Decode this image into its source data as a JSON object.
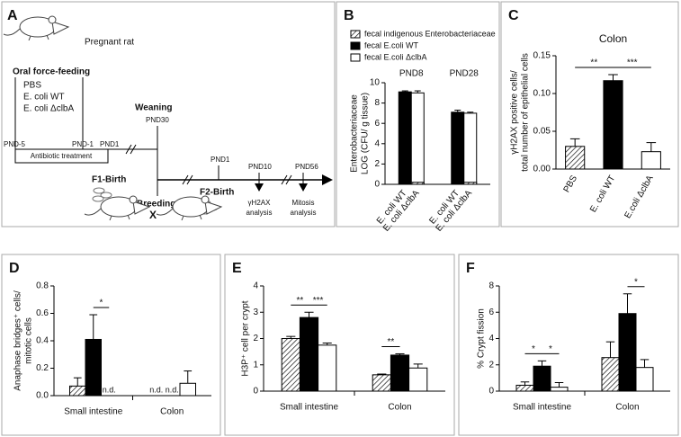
{
  "diagram": {
    "label": "A",
    "pregnant_rat": "Pregnant  rat",
    "oral_force_feeding": "Oral force-feeding",
    "groups": [
      "PBS",
      "E. coli WT",
      "E. coli ΔclbA"
    ],
    "timeline_1": [
      "PND-5",
      "PND-1",
      "PND1",
      "PND30"
    ],
    "antibiotic": "Antibiotic treatment",
    "weaning": "Weaning",
    "f1_birth": "F1-Birth",
    "breeding": "Breeding",
    "cross": "X",
    "timeline_2": [
      "PND1",
      "PND10",
      "PND56"
    ],
    "f2_birth": "F2-Birth",
    "analyses": [
      [
        "γH2AX",
        "analysis"
      ],
      [
        "Mitosis",
        "analysis"
      ]
    ]
  },
  "chart_data": [
    {
      "type": "bar",
      "label": "B",
      "ylabel": [
        "Enterobacteriaceae",
        "LOG (CFU/ g tissue)"
      ],
      "groups": [
        "PND8",
        "PND28"
      ],
      "categories": [
        "E. coli WT",
        "E. coli ΔclbA",
        "E. coli WT",
        "E. coli ΔclbA"
      ],
      "series": [
        {
          "name": "fecal indigenous Enterobacteriaceae",
          "color": "#ffffff",
          "hatched": true,
          "values": [
            null,
            0.2,
            null,
            0.2
          ]
        },
        {
          "name": "fecal E.coli WT",
          "color": "#000000",
          "hatched": false,
          "values": [
            9.1,
            null,
            7.1,
            null
          ],
          "errors": [
            0.1,
            null,
            0.2,
            null
          ]
        },
        {
          "name": "fecal E.coli ΔclbA",
          "color": "#ffffff",
          "hatched": false,
          "values": [
            null,
            9.0,
            null,
            7.0
          ],
          "errors": [
            null,
            0.2,
            null,
            0.1
          ]
        }
      ],
      "ylim": [
        0,
        10
      ],
      "yticks": [
        0,
        2,
        4,
        6,
        8,
        10
      ]
    },
    {
      "type": "bar",
      "label": "C",
      "title": "Colon",
      "ylabel": [
        "γH2AX positive cells/",
        "total number of epithelial cells"
      ],
      "categories": [
        "PBS",
        "E. coli WT",
        "E.coli ΔclbA"
      ],
      "values": [
        0.03,
        0.117,
        0.023
      ],
      "errors": [
        0.01,
        0.008,
        0.012
      ],
      "colors": [
        "#ffffff",
        "#000000",
        "#ffffff"
      ],
      "hatched": [
        true,
        false,
        false
      ],
      "ylim": [
        0,
        0.15
      ],
      "yticks": [
        {
          "value": 0,
          "label": "0.00"
        },
        {
          "value": 0.05,
          "label": "0.05"
        },
        {
          "value": 0.1,
          "label": "0.10"
        },
        {
          "value": 0.15,
          "label": "0.15"
        }
      ],
      "significance": [
        {
          "label": "**",
          "between": [
            0,
            1
          ]
        },
        {
          "label": "***",
          "between": [
            1,
            2
          ]
        }
      ]
    },
    {
      "type": "bar",
      "label": "D",
      "ylabel": [
        "Anaphase bridges⁺ cells/",
        "mitotic cells"
      ],
      "categories": [
        "Small intestine",
        "Colon"
      ],
      "series": [
        {
          "color": "#ffffff",
          "hatched": true,
          "values": [
            0.07,
            null
          ],
          "errors": [
            0.06,
            null
          ],
          "value_labels": [
            null,
            "n.d."
          ]
        },
        {
          "color": "#000000",
          "hatched": false,
          "values": [
            0.41,
            null
          ],
          "errors": [
            0.18,
            null
          ],
          "value_labels": [
            null,
            "n.d."
          ]
        },
        {
          "color": "#ffffff",
          "hatched": false,
          "values": [
            null,
            0.09
          ],
          "errors": [
            null,
            0.09
          ],
          "value_labels": [
            "n.d.",
            null
          ]
        }
      ],
      "ylim": [
        0,
        0.8
      ],
      "yticks": [
        {
          "value": 0,
          "label": "0.0"
        },
        0.2,
        0.4,
        0.6,
        0.8
      ],
      "significance": [
        {
          "label": "*",
          "category": 0,
          "between": [
            1,
            2
          ]
        }
      ]
    },
    {
      "type": "bar",
      "label": "E",
      "ylabel": [
        "H3P⁺ cell per crypt"
      ],
      "categories": [
        "Small intestine",
        "Colon"
      ],
      "series": [
        {
          "color": "#ffffff",
          "hatched": true,
          "values": [
            2.0,
            0.62
          ],
          "errors": [
            0.08,
            0.03
          ]
        },
        {
          "color": "#000000",
          "hatched": false,
          "values": [
            2.8,
            1.37
          ],
          "errors": [
            0.2,
            0.05
          ]
        },
        {
          "color": "#ffffff",
          "hatched": false,
          "values": [
            1.75,
            0.88
          ],
          "errors": [
            0.08,
            0.15
          ]
        }
      ],
      "ylim": [
        0,
        4
      ],
      "yticks": [
        0,
        1,
        2,
        3,
        4
      ],
      "significance": [
        {
          "label": "**",
          "category": 0,
          "between": [
            0,
            1
          ]
        },
        {
          "label": "***",
          "category": 0,
          "between": [
            1,
            2
          ]
        },
        {
          "label": "**",
          "category": 1,
          "between": [
            0,
            1
          ]
        }
      ]
    },
    {
      "type": "bar",
      "label": "F",
      "ylabel": [
        "% Crypt fission"
      ],
      "categories": [
        "Small intestine",
        "Colon"
      ],
      "series": [
        {
          "color": "#ffffff",
          "hatched": true,
          "values": [
            0.45,
            2.55
          ],
          "errors": [
            0.25,
            1.2
          ]
        },
        {
          "color": "#000000",
          "hatched": false,
          "values": [
            1.9,
            5.9
          ],
          "errors": [
            0.4,
            1.5
          ]
        },
        {
          "color": "#ffffff",
          "hatched": false,
          "values": [
            0.3,
            1.8
          ],
          "errors": [
            0.35,
            0.6
          ]
        }
      ],
      "ylim": [
        0,
        8
      ],
      "yticks": [
        0,
        2,
        4,
        6,
        8
      ],
      "significance": [
        {
          "label": "*",
          "category": 0,
          "between": [
            0,
            1
          ]
        },
        {
          "label": "*",
          "category": 0,
          "between": [
            1,
            2
          ]
        },
        {
          "label": "*",
          "category": 1,
          "between": [
            1,
            2
          ]
        }
      ]
    }
  ]
}
